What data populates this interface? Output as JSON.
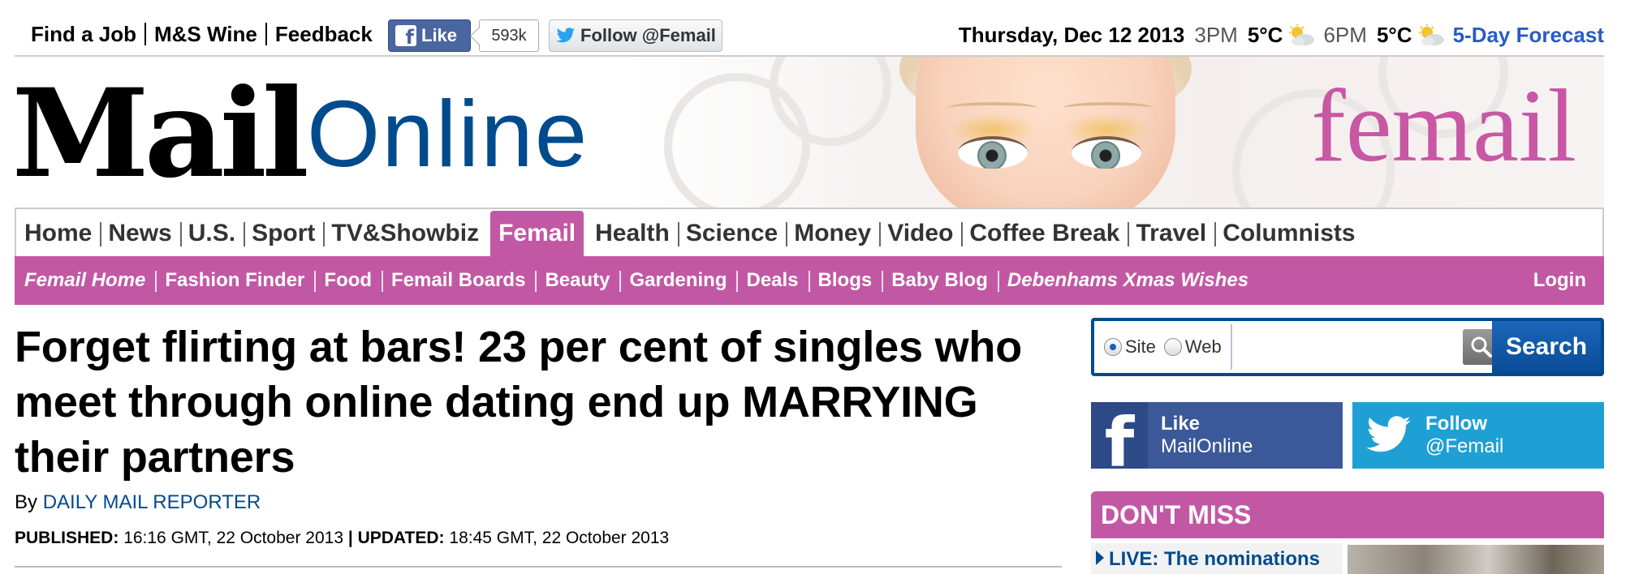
{
  "top_links": [
    "Find a Job",
    "M&S Wine",
    "Feedback"
  ],
  "social_top": {
    "fb_label": "Like",
    "fb_count": "593k",
    "twitter_label": "Follow @Femail"
  },
  "weather": {
    "date": "Thursday, Dec 12 2013",
    "time1": "3PM",
    "temp1": "5°C",
    "time2": "6PM",
    "temp2": "5°C",
    "forecast_link": "5-Day Forecast"
  },
  "masthead": {
    "logo_mail": "Mail",
    "logo_online": "Online",
    "section_logo": "femail"
  },
  "main_nav": [
    {
      "label": "Home",
      "active": false
    },
    {
      "label": "News",
      "active": false
    },
    {
      "label": "U.S.",
      "active": false
    },
    {
      "label": "Sport",
      "active": false
    },
    {
      "label": "TV&Showbiz",
      "active": false
    },
    {
      "label": "Femail",
      "active": true
    },
    {
      "label": "Health",
      "active": false
    },
    {
      "label": "Science",
      "active": false
    },
    {
      "label": "Money",
      "active": false
    },
    {
      "label": "Video",
      "active": false
    },
    {
      "label": "Coffee Break",
      "active": false
    },
    {
      "label": "Travel",
      "active": false
    },
    {
      "label": "Columnists",
      "active": false
    }
  ],
  "sub_nav": {
    "items": [
      "Femail Home",
      "Fashion Finder",
      "Food",
      "Femail Boards",
      "Beauty",
      "Gardening",
      "Deals",
      "Blogs",
      "Baby Blog",
      "Debenhams Xmas Wishes"
    ],
    "login": "Login"
  },
  "article": {
    "headline": "Forget flirting at bars! 23 per cent of singles who meet through online dating end up MARRYING their partners",
    "by_prefix": "By",
    "author": "DAILY MAIL REPORTER",
    "published_label": "PUBLISHED:",
    "published_value": "16:16 GMT, 22 October 2013",
    "separator": "|",
    "updated_label": "UPDATED:",
    "updated_value": "18:45 GMT, 22 October 2013"
  },
  "search": {
    "option_site": "Site",
    "option_web": "Web",
    "selected": "Site",
    "value": "",
    "button": "Search"
  },
  "social_right": {
    "fb_line1": "Like",
    "fb_line2": "MailOnline",
    "tw_line1": "Follow",
    "tw_line2": "@Femail"
  },
  "dont_miss": {
    "title": "DON'T MISS",
    "first_item": "LIVE: The nominations"
  },
  "colors": {
    "femail_pink": "#c258a4",
    "mail_blue": "#004b8d",
    "facebook_blue": "#3b5998",
    "twitter_blue": "#1fa0d4"
  }
}
